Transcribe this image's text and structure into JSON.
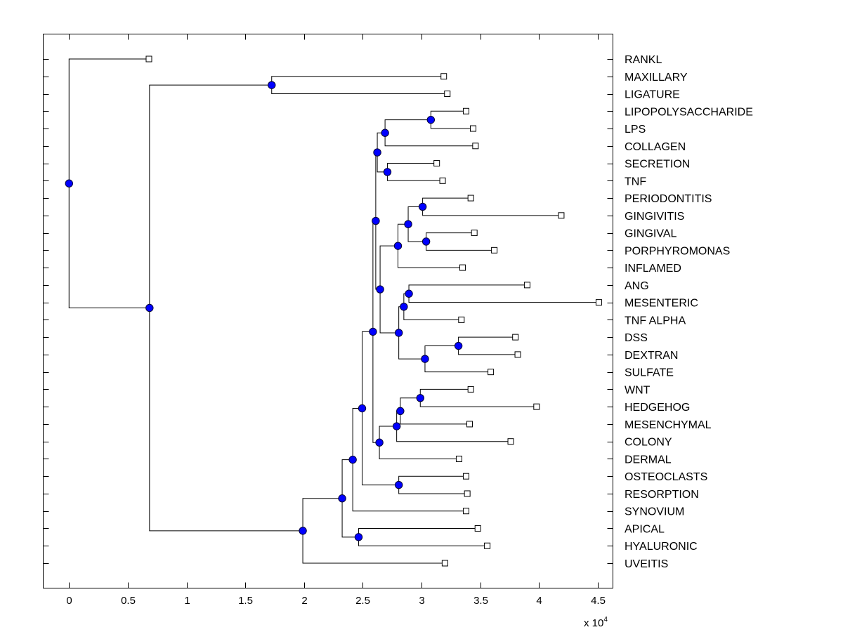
{
  "chart_data": {
    "type": "dendrogram",
    "title": "",
    "xlabel": "",
    "ylabel": "",
    "x_multiplier_label": "x 10",
    "x_multiplier_exponent": "4",
    "xlim": [
      -0.22,
      4.63
    ],
    "xticks": [
      0,
      0.5,
      1,
      1.5,
      2,
      2.5,
      3,
      3.5,
      4,
      4.5
    ],
    "xtick_labels": [
      "0",
      "0.5",
      "1",
      "1.5",
      "2",
      "2.5",
      "3",
      "3.5",
      "4",
      "4.5"
    ],
    "grid": false,
    "colors": {
      "node_fill": "#0000ff",
      "leaf_fill": "#ffffff",
      "line": "#000000"
    },
    "leaves": [
      {
        "id": "RANKL",
        "label": "RANKL",
        "x": 0.68
      },
      {
        "id": "MAXILLARY",
        "label": "MAXILLARY",
        "x": 3.19
      },
      {
        "id": "LIGATURE",
        "label": "LIGATURE",
        "x": 3.22
      },
      {
        "id": "LIPOPOLYSACCHARIDE",
        "label": "LIPOPOLYSACCHARIDE",
        "x": 3.38
      },
      {
        "id": "LPS",
        "label": "LPS",
        "x": 3.44
      },
      {
        "id": "COLLAGEN",
        "label": "COLLAGEN",
        "x": 3.46
      },
      {
        "id": "SECRETION",
        "label": "SECRETION",
        "x": 3.13
      },
      {
        "id": "TNF",
        "label": "TNF",
        "x": 3.18
      },
      {
        "id": "PERIODONTITIS",
        "label": "PERIODONTITIS",
        "x": 3.42
      },
      {
        "id": "GINGIVITIS",
        "label": "GINGIVITIS",
        "x": 4.19
      },
      {
        "id": "GINGIVAL",
        "label": "GINGIVAL",
        "x": 3.45
      },
      {
        "id": "PORPHYROMONAS",
        "label": "PORPHYROMONAS",
        "x": 3.62
      },
      {
        "id": "INFLAMED",
        "label": "INFLAMED",
        "x": 3.35
      },
      {
        "id": "ANG",
        "label": "ANG",
        "x": 3.9
      },
      {
        "id": "MESENTERIC",
        "label": "MESENTERIC",
        "x": 4.51
      },
      {
        "id": "TNF ALPHA",
        "label": "TNF ALPHA",
        "x": 3.34
      },
      {
        "id": "DSS",
        "label": "DSS",
        "x": 3.8
      },
      {
        "id": "DEXTRAN",
        "label": "DEXTRAN",
        "x": 3.82
      },
      {
        "id": "SULFATE",
        "label": "SULFATE",
        "x": 3.59
      },
      {
        "id": "WNT",
        "label": "WNT",
        "x": 3.42
      },
      {
        "id": "HEDGEHOG",
        "label": "HEDGEHOG",
        "x": 3.98
      },
      {
        "id": "MESENCHYMAL",
        "label": "MESENCHYMAL",
        "x": 3.41
      },
      {
        "id": "COLONY",
        "label": "COLONY",
        "x": 3.76
      },
      {
        "id": "DERMAL",
        "label": "DERMAL",
        "x": 3.32
      },
      {
        "id": "OSTEOCLASTS",
        "label": "OSTEOCLASTS",
        "x": 3.38
      },
      {
        "id": "RESORPTION",
        "label": "RESORPTION",
        "x": 3.39
      },
      {
        "id": "SYNOVIUM",
        "label": "SYNOVIUM",
        "x": 3.38
      },
      {
        "id": "APICAL",
        "label": "APICAL",
        "x": 3.48
      },
      {
        "id": "HYALURONIC",
        "label": "HYALURONIC",
        "x": 3.56
      },
      {
        "id": "UVEITIS",
        "label": "UVEITIS",
        "x": 3.2
      }
    ],
    "nodes": [
      {
        "id": "root",
        "x": 0.0,
        "children": [
          "RANKL",
          "A"
        ]
      },
      {
        "id": "A",
        "x": 0.685,
        "children": [
          "B",
          "C"
        ]
      },
      {
        "id": "B",
        "x": 1.725,
        "children": [
          "MAXILLARY",
          "LIGATURE"
        ]
      },
      {
        "id": "C",
        "x": 1.99,
        "children": [
          "D",
          "UVEITIS"
        ]
      },
      {
        "id": "D",
        "x": 2.325,
        "children": [
          "E",
          "F"
        ]
      },
      {
        "id": "F",
        "x": 2.465,
        "children": [
          "APICAL",
          "HYALURONIC"
        ]
      },
      {
        "id": "E",
        "x": 2.415,
        "children": [
          "G",
          "SYNOVIUM"
        ]
      },
      {
        "id": "G",
        "x": 2.495,
        "children": [
          "H",
          "I"
        ]
      },
      {
        "id": "I",
        "x": 2.807,
        "children": [
          "OSTEOCLASTS",
          "RESORPTION"
        ]
      },
      {
        "id": "H",
        "x": 2.587,
        "children": [
          "J",
          "K"
        ]
      },
      {
        "id": "K",
        "x": 2.642,
        "children": [
          "L",
          "DERMAL"
        ]
      },
      {
        "id": "L",
        "x": 2.789,
        "children": [
          "M",
          "COLONY"
        ]
      },
      {
        "id": "M",
        "x": 2.82,
        "children": [
          "N",
          "MESENCHYMAL"
        ]
      },
      {
        "id": "N",
        "x": 2.99,
        "children": [
          "WNT",
          "HEDGEHOG"
        ]
      },
      {
        "id": "J",
        "x": 2.611,
        "children": [
          "O",
          "P"
        ]
      },
      {
        "id": "O",
        "x": 2.624,
        "children": [
          "Q",
          "R"
        ]
      },
      {
        "id": "Q",
        "x": 2.69,
        "children": [
          "S",
          "COLLAGEN"
        ]
      },
      {
        "id": "S",
        "x": 3.08,
        "children": [
          "LIPOPOLYSACCHARIDE",
          "LPS"
        ]
      },
      {
        "id": "R",
        "x": 2.71,
        "children": [
          "SECRETION",
          "TNF"
        ]
      },
      {
        "id": "P",
        "x": 2.648,
        "children": [
          "T",
          "U"
        ]
      },
      {
        "id": "T",
        "x": 2.8,
        "children": [
          "V",
          "INFLAMED"
        ]
      },
      {
        "id": "V",
        "x": 2.887,
        "children": [
          "W",
          "X"
        ]
      },
      {
        "id": "W",
        "x": 3.01,
        "children": [
          "PERIODONTITIS",
          "GINGIVITIS"
        ]
      },
      {
        "id": "X",
        "x": 3.04,
        "children": [
          "GINGIVAL",
          "PORPHYROMONAS"
        ]
      },
      {
        "id": "U",
        "x": 2.807,
        "children": [
          "Y",
          "Z"
        ]
      },
      {
        "id": "Y",
        "x": 2.85,
        "children": [
          "YY",
          "TNF ALPHA"
        ]
      },
      {
        "id": "YY",
        "x": 2.893,
        "children": [
          "ANG",
          "MESENTERIC"
        ]
      },
      {
        "id": "Z",
        "x": 3.03,
        "children": [
          "ZZ",
          "SULFATE"
        ]
      },
      {
        "id": "ZZ",
        "x": 3.315,
        "children": [
          "DSS",
          "DEXTRAN"
        ]
      }
    ]
  }
}
